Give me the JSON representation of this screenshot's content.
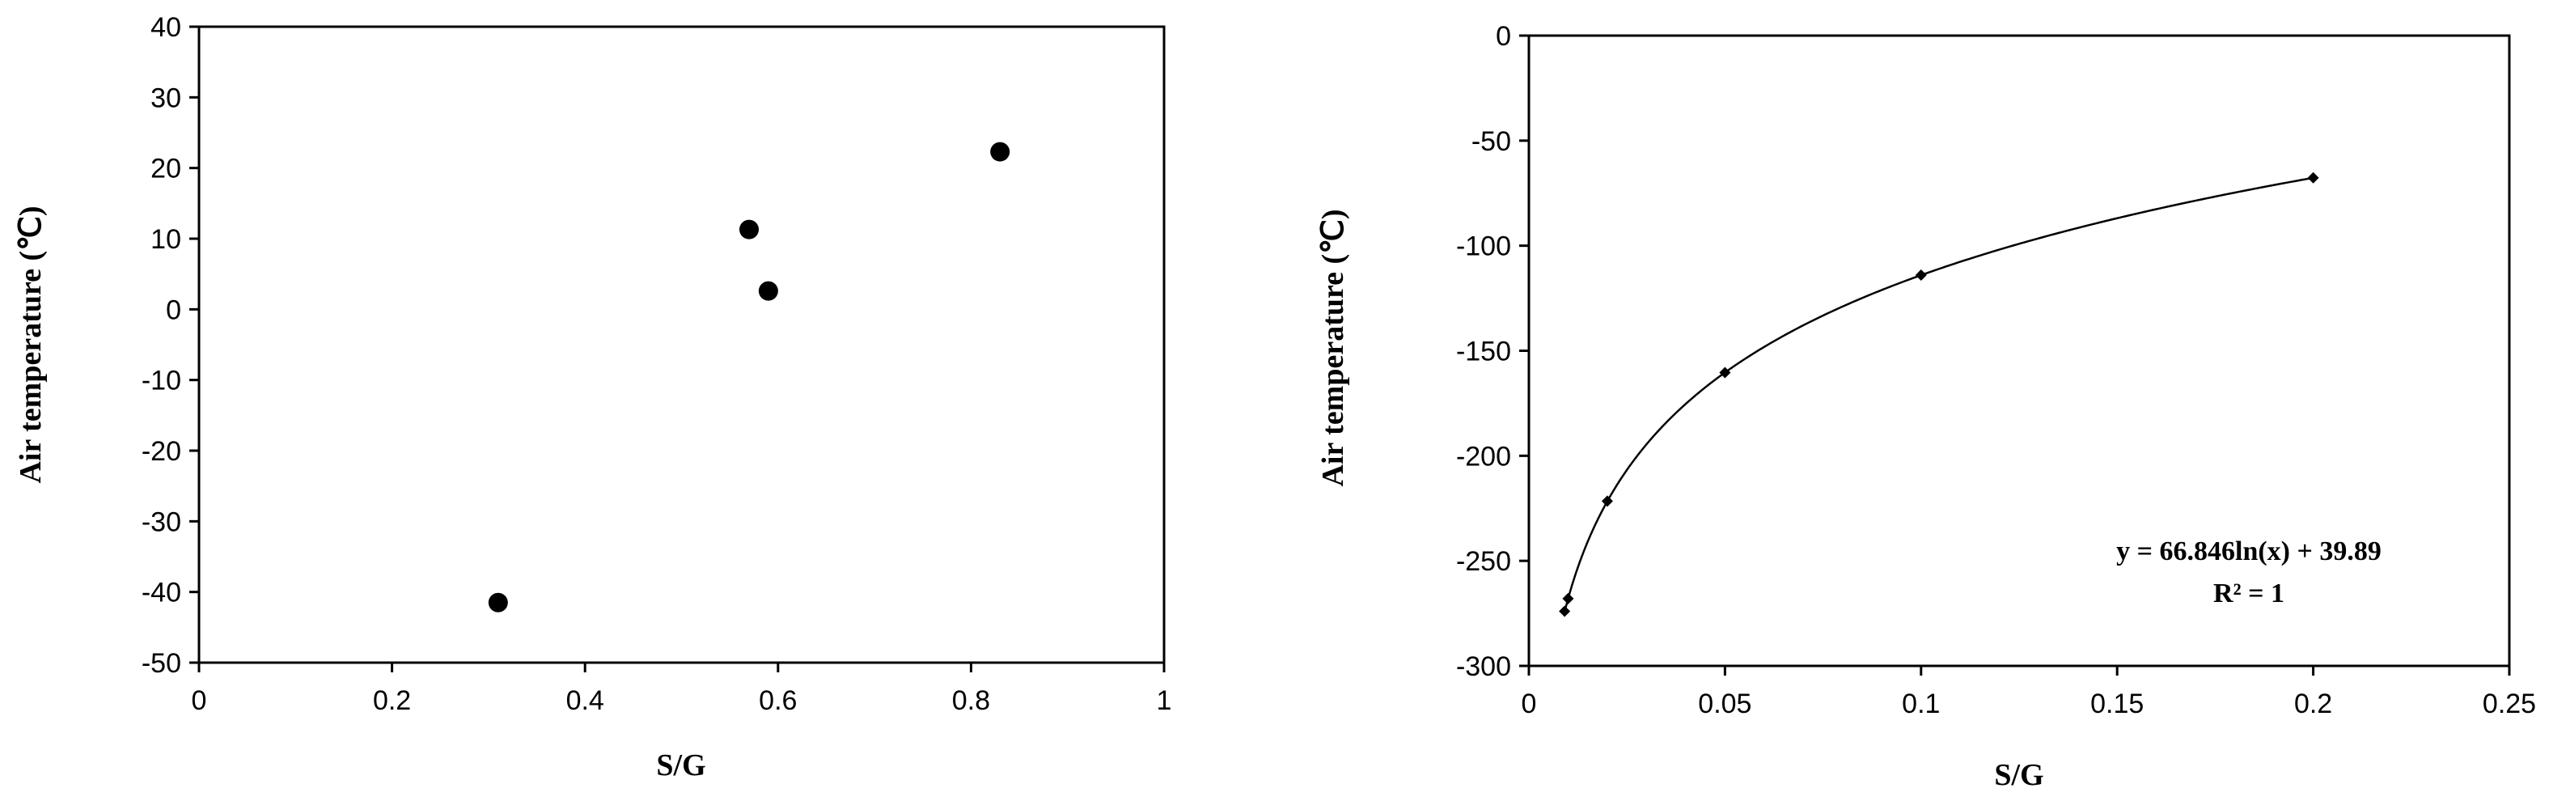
{
  "chart_data": [
    {
      "type": "scatter",
      "title": "",
      "xlabel": "S/G",
      "ylabel": "Air temperature (℃)",
      "xlim": [
        0,
        1
      ],
      "ylim": [
        -50,
        40
      ],
      "xticks": [
        0,
        0.2,
        0.4,
        0.6,
        0.8,
        1
      ],
      "yticks": [
        40,
        30,
        20,
        10,
        0,
        -10,
        -20,
        -30,
        -40,
        -50
      ],
      "xtick_labels": [
        "0",
        "0.2",
        "0.4",
        "0.6",
        "0.8",
        "1"
      ],
      "ytick_labels": [
        "40",
        "30",
        "20",
        "10",
        "0",
        "-10",
        "-20",
        "-30",
        "-40",
        "-50"
      ],
      "series": [
        {
          "points": [
            [
              0.31,
              -41.5
            ],
            [
              0.57,
              11.3
            ],
            [
              0.59,
              2.6
            ],
            [
              0.83,
              22.3
            ]
          ]
        }
      ],
      "grid": false,
      "marker_color": "#000000"
    },
    {
      "type": "scatter",
      "title": "",
      "xlabel": "S/G",
      "ylabel": "Air temperature (℃)",
      "xlim": [
        0,
        0.25
      ],
      "ylim": [
        -300,
        0
      ],
      "xticks": [
        0,
        0.05,
        0.1,
        0.15,
        0.2,
        0.25
      ],
      "yticks": [
        0,
        -50,
        -100,
        -150,
        -200,
        -250,
        -300
      ],
      "xtick_labels": [
        "0",
        "0.05",
        "0.1",
        "0.15",
        "0.2",
        "0.25"
      ],
      "ytick_labels": [
        "0",
        "-50",
        "-100",
        "-150",
        "-200",
        "-250",
        "-300"
      ],
      "series": [
        {
          "points": [
            [
              0.0091,
              -274
            ],
            [
              0.01,
              -268
            ],
            [
              0.02,
              -221.6
            ],
            [
              0.05,
              -160.4
            ],
            [
              0.1,
              -114.0
            ],
            [
              0.2,
              -67.7
            ]
          ]
        }
      ],
      "trendline": {
        "type": "logarithmic",
        "a": 66.846,
        "b": 39.89,
        "x_range": [
          0.0091,
          0.2
        ]
      },
      "annotations": [
        "y = 66.846ln(x) + 39.89",
        "R² = 1"
      ],
      "grid": false,
      "marker_color": "#000000"
    }
  ]
}
